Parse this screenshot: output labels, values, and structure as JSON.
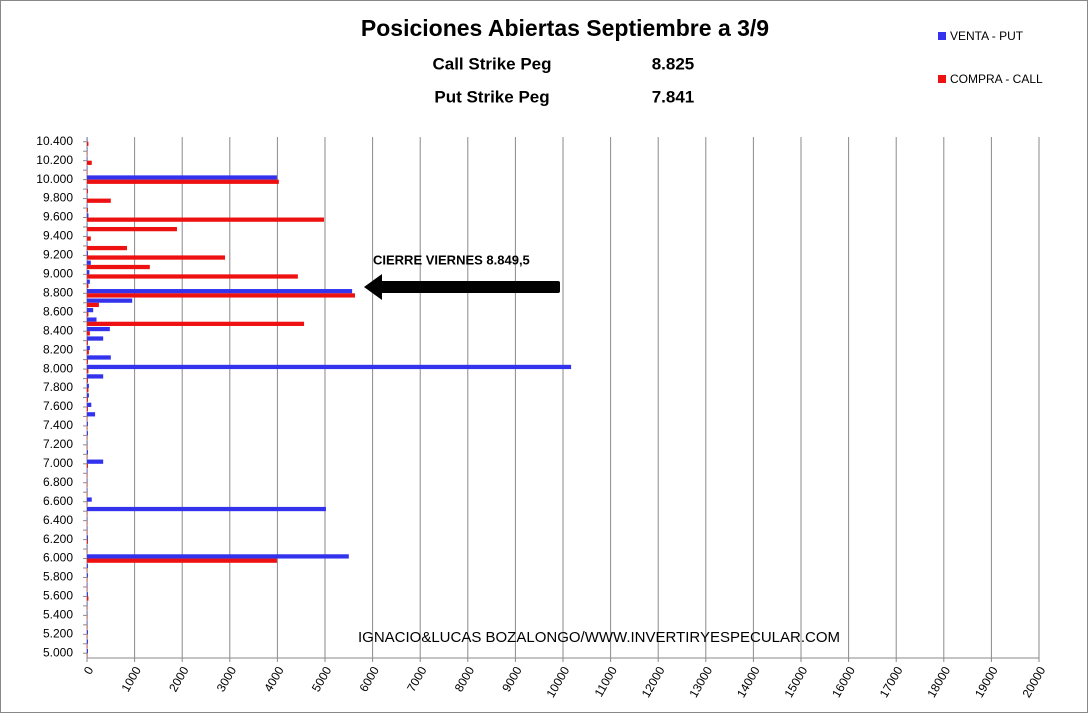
{
  "chart_data": {
    "type": "hbar",
    "title": "Posiciones Abiertas Septiembre a 3/9",
    "subtitle_rows": [
      {
        "label": "Call Strike Peg",
        "value": "8.825"
      },
      {
        "label": "Put Strike Peg",
        "value": "7.841"
      }
    ],
    "annotation": "CIERRE VIERNES 8.849,5",
    "watermark": "IGNACIO&LUCAS BOZALONGO/WWW.INVERTIRYESPECULAR.COM",
    "categories": [
      "5.000",
      null,
      "5.200",
      null,
      "5.400",
      null,
      "5.600",
      null,
      "5.800",
      null,
      "6.000",
      null,
      "6.200",
      null,
      "6.400",
      null,
      "6.600",
      null,
      "6.800",
      null,
      "7.000",
      null,
      "7.200",
      null,
      "7.400",
      null,
      "7.600",
      null,
      "7.800",
      null,
      "8.000",
      null,
      "8.200",
      null,
      "8.400",
      null,
      "8.600",
      null,
      "8.800",
      null,
      "9.000",
      null,
      "9.200",
      null,
      "9.400",
      null,
      "9.600",
      null,
      "9.800",
      null,
      "10.000",
      null,
      "10.200",
      null,
      "10.400"
    ],
    "series": [
      {
        "name": "VENTA - PUT",
        "color": "#3333ee",
        "values": [
          20,
          20,
          20,
          10,
          10,
          10,
          20,
          10,
          20,
          20,
          5500,
          10,
          20,
          10,
          10,
          5020,
          100,
          10,
          10,
          10,
          340,
          20,
          10,
          20,
          20,
          170,
          90,
          40,
          40,
          340,
          10170,
          500,
          60,
          340,
          480,
          200,
          130,
          950,
          5570,
          60,
          50,
          80,
          20,
          10,
          10,
          10,
          30,
          10,
          10,
          10,
          3990,
          10,
          10,
          10,
          10
        ]
      },
      {
        "name": "COMPRA - CALL",
        "color": "#ee1111",
        "values": [
          10,
          10,
          10,
          10,
          10,
          10,
          30,
          10,
          10,
          10,
          3990,
          10,
          20,
          10,
          10,
          10,
          10,
          10,
          10,
          10,
          20,
          10,
          10,
          10,
          10,
          10,
          20,
          20,
          30,
          20,
          30,
          20,
          40,
          20,
          60,
          4560,
          30,
          250,
          5630,
          30,
          4430,
          1320,
          2900,
          840,
          80,
          1890,
          4980,
          20,
          500,
          20,
          4030,
          10,
          100,
          10,
          30
        ]
      }
    ],
    "xlim": [
      0,
      20000
    ],
    "xticks": [
      0,
      1000,
      2000,
      3000,
      4000,
      5000,
      6000,
      7000,
      8000,
      9000,
      10000,
      11000,
      12000,
      13000,
      14000,
      15000,
      16000,
      17000,
      18000,
      19000,
      20000
    ],
    "grid": true
  }
}
